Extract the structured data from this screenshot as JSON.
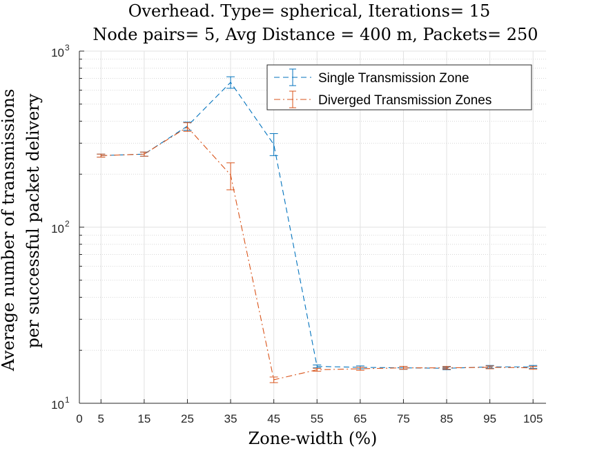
{
  "chart_data": {
    "type": "line",
    "title": [
      "Overhead. Type= spherical, Iterations= 15",
      "Node pairs= 5, Avg Distance = 400 m, Packets= 250"
    ],
    "xlabel": "Zone-width (%)",
    "ylabel": [
      "Average number of transmissions",
      "per successful packet delivery"
    ],
    "xlim": [
      0,
      108
    ],
    "ylim": [
      10,
      1000
    ],
    "yscale": "log",
    "grid": true,
    "minor_grid": true,
    "legend_position": "top-right",
    "x_ticks": [
      0,
      5,
      15,
      25,
      35,
      45,
      55,
      65,
      75,
      85,
      95,
      105
    ],
    "x_tick_labels": [
      "0",
      "5",
      "15",
      "25",
      "35",
      "45",
      "55",
      "65",
      "75",
      "85",
      "95",
      "105"
    ],
    "y_ticks": [
      10,
      100,
      1000
    ],
    "y_tick_labels": [
      {
        "base": "10",
        "exp": "1"
      },
      {
        "base": "10",
        "exp": "2"
      },
      {
        "base": "10",
        "exp": "3"
      }
    ],
    "x": [
      5,
      15,
      25,
      35,
      45,
      55,
      65,
      75,
      85,
      95,
      105
    ],
    "series": [
      {
        "name": "Single Transmission Zone",
        "color": "#0072BD",
        "line_style": "dashed",
        "values": [
          255,
          260,
          375,
          665,
          295,
          16.2,
          16.0,
          15.9,
          15.8,
          16.1,
          16.1
        ],
        "err_low": [
          250,
          253,
          355,
          615,
          255,
          15.9,
          15.7,
          15.6,
          15.5,
          15.8,
          15.8
        ],
        "err_high": [
          260,
          267,
          395,
          715,
          340,
          16.5,
          16.3,
          16.2,
          16.1,
          16.4,
          16.4
        ]
      },
      {
        "name": "Diverged Transmission Zones",
        "color": "#D95319",
        "line_style": "dash-dot",
        "values": [
          255,
          260,
          370,
          198,
          13.6,
          15.5,
          15.7,
          15.9,
          15.9,
          16.0,
          15.9
        ],
        "err_low": [
          250,
          253,
          350,
          163,
          13.1,
          15.2,
          15.4,
          15.6,
          15.6,
          15.7,
          15.6
        ],
        "err_high": [
          260,
          267,
          392,
          232,
          14.1,
          15.8,
          16.0,
          16.2,
          16.2,
          16.3,
          16.2
        ]
      }
    ]
  }
}
